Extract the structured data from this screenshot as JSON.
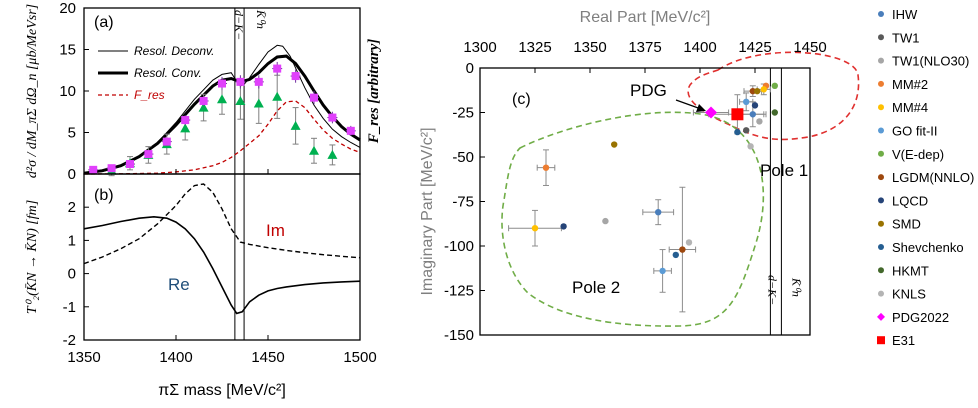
{
  "chart_data": [
    {
      "panel": "a",
      "type": "line",
      "label": "(a)",
      "xlim": [
        1350,
        1500
      ],
      "ylim": [
        0,
        20
      ],
      "xticks": [
        1350,
        1400,
        1450,
        1500
      ],
      "yticks": [
        0,
        5,
        10,
        15,
        20
      ],
      "ylabel": "d²σ / dM_πΣ dΩ_n [μb/MeVsr]",
      "ylabel_right": "F_res [arbitrary]",
      "threshold_labels": [
        "d−K−",
        "K̄⁰n"
      ],
      "thresholds": [
        1432,
        1437
      ],
      "legend": [
        "Resol. Deconv.",
        "Resol. Conv.",
        "F_res"
      ],
      "series": [
        {
          "name": "Resol. Deconv.",
          "x": [
            1350,
            1360,
            1370,
            1380,
            1390,
            1400,
            1410,
            1420,
            1425,
            1430,
            1432,
            1435,
            1437,
            1440,
            1445,
            1450,
            1455,
            1458,
            1462,
            1466,
            1470,
            1475,
            1480,
            1485,
            1490,
            1495,
            1500
          ],
          "y": [
            0.05,
            0.3,
            0.9,
            2.0,
            3.8,
            6.2,
            9.0,
            11.3,
            12.0,
            12.2,
            11.5,
            10.6,
            10.8,
            11.6,
            13.2,
            14.7,
            15.5,
            15.4,
            14.2,
            12.3,
            10.4,
            8.3,
            6.7,
            5.4,
            4.5,
            3.8,
            3.2
          ]
        },
        {
          "name": "Resol. Conv.",
          "x": [
            1350,
            1360,
            1370,
            1380,
            1390,
            1400,
            1410,
            1420,
            1425,
            1430,
            1435,
            1440,
            1445,
            1450,
            1455,
            1460,
            1465,
            1470,
            1475,
            1480,
            1485,
            1490,
            1495,
            1500
          ],
          "y": [
            0.1,
            0.4,
            1.0,
            2.1,
            3.7,
            5.9,
            8.4,
            10.6,
            11.3,
            11.5,
            11.1,
            11.4,
            12.2,
            13.3,
            14.1,
            14.2,
            13.3,
            11.8,
            10.0,
            8.3,
            6.9,
            5.7,
            4.8,
            4.1
          ]
        },
        {
          "name": "F_res",
          "x": [
            1350,
            1370,
            1390,
            1400,
            1410,
            1420,
            1425,
            1430,
            1435,
            1440,
            1445,
            1450,
            1455,
            1460,
            1465,
            1470,
            1475,
            1480,
            1485,
            1490,
            1495,
            1500
          ],
          "y": [
            0,
            0.02,
            0.1,
            0.25,
            0.5,
            1.0,
            1.4,
            2.0,
            2.8,
            3.7,
            4.6,
            6.0,
            7.6,
            8.7,
            8.8,
            8.0,
            6.6,
            5.3,
            4.3,
            3.6,
            3.0,
            2.6
          ]
        },
        {
          "name": "data (magenta squares)",
          "x": [
            1355,
            1365,
            1375,
            1385,
            1395,
            1405,
            1415,
            1425,
            1435,
            1445,
            1455,
            1465,
            1475,
            1485,
            1495
          ],
          "y": [
            0.5,
            0.7,
            1.2,
            2.4,
            3.9,
            6.5,
            8.8,
            10.9,
            11.1,
            11.1,
            12.7,
            11.8,
            9.2,
            6.8,
            5.2
          ],
          "err": [
            0.3,
            0.3,
            0.3,
            0.4,
            0.5,
            0.6,
            0.6,
            0.8,
            0.8,
            0.8,
            0.8,
            0.8,
            0.8,
            0.7,
            0.6
          ]
        },
        {
          "name": "data (green triangles)",
          "x": [
            1365,
            1375,
            1385,
            1395,
            1405,
            1415,
            1425,
            1435,
            1445,
            1455,
            1465,
            1475,
            1485
          ],
          "y": [
            0.4,
            1.3,
            2.3,
            3.6,
            5.5,
            8.0,
            9.0,
            8.8,
            8.5,
            9.3,
            5.8,
            2.8,
            2.3
          ],
          "err": [
            0.6,
            0.8,
            1.0,
            1.2,
            1.4,
            1.6,
            1.8,
            2.2,
            2.4,
            2.6,
            2.2,
            1.5,
            1.2
          ]
        }
      ]
    },
    {
      "panel": "b",
      "type": "line",
      "label": "(b)",
      "xlim": [
        1350,
        1500
      ],
      "ylim": [
        -2,
        3
      ],
      "xticks": [
        1350,
        1400,
        1450,
        1500
      ],
      "yticks": [
        -2,
        -1,
        0,
        1,
        2
      ],
      "xlabel": "πΣ mass [MeV/c²]",
      "ylabel": "T⁰₂(K̄N → K̄N) [fm]",
      "series": [
        {
          "name": "Re",
          "x": [
            1350,
            1360,
            1370,
            1380,
            1388,
            1395,
            1400,
            1405,
            1410,
            1415,
            1420,
            1425,
            1430,
            1433,
            1436,
            1438,
            1440,
            1445,
            1450,
            1455,
            1460,
            1470,
            1480,
            1490,
            1500
          ],
          "y": [
            1.35,
            1.45,
            1.57,
            1.67,
            1.71,
            1.67,
            1.55,
            1.35,
            1.05,
            0.65,
            0.15,
            -0.4,
            -0.95,
            -1.2,
            -1.15,
            -1.0,
            -0.85,
            -0.65,
            -0.52,
            -0.45,
            -0.4,
            -0.33,
            -0.28,
            -0.25,
            -0.23
          ]
        },
        {
          "name": "Im",
          "x": [
            1350,
            1360,
            1370,
            1380,
            1390,
            1400,
            1405,
            1410,
            1415,
            1420,
            1425,
            1430,
            1435,
            1440,
            1450,
            1460,
            1470,
            1480,
            1490,
            1500
          ],
          "y": [
            0.3,
            0.5,
            0.75,
            1.05,
            1.5,
            2.05,
            2.4,
            2.65,
            2.7,
            2.45,
            1.95,
            1.35,
            0.95,
            0.88,
            0.78,
            0.7,
            0.63,
            0.57,
            0.52,
            0.48
          ]
        }
      ],
      "annotations": [
        "Im",
        "Re"
      ]
    },
    {
      "panel": "c",
      "type": "scatter",
      "label": "(c)",
      "xlabel": "Real Part [MeV/c²]",
      "ylabel": "Imaginary Part [MeV/c²]",
      "xlim": [
        1300,
        1450
      ],
      "ylim": [
        -150,
        0
      ],
      "xticks": [
        1300,
        1325,
        1350,
        1375,
        1400,
        1425,
        1450
      ],
      "yticks": [
        0,
        -25,
        -50,
        -75,
        -100,
        -125,
        -150
      ],
      "thresholds": [
        1432,
        1437
      ],
      "threshold_labels": [
        "d−K−",
        "K̄⁰n"
      ],
      "annotations": [
        "PDG",
        "Pole 1",
        "Pole 2"
      ],
      "legend_position": "right",
      "series": [
        {
          "name": "IHW",
          "color": "#4a7ebb",
          "points": [
            [
              1424,
              -26
            ],
            [
              1381,
              -81
            ]
          ]
        },
        {
          "name": "TW1",
          "color": "#595959",
          "points": [
            [
              1421,
              -35
            ]
          ]
        },
        {
          "name": "TW1(NLO30)",
          "color": "#a6a6a6",
          "points": [
            [
              1427,
              -30
            ],
            [
              1357,
              -86
            ]
          ]
        },
        {
          "name": "MM#2",
          "color": "#ed7d31",
          "points": [
            [
              1430,
              -10
            ],
            [
              1330,
              -56
            ]
          ]
        },
        {
          "name": "MM#4",
          "color": "#ffc000",
          "points": [
            [
              1429,
              -12
            ],
            [
              1325,
              -90
            ]
          ]
        },
        {
          "name": "GO fit-II",
          "color": "#5b9bd5",
          "points": [
            [
              1421,
              -19
            ],
            [
              1383,
              -114
            ]
          ]
        },
        {
          "name": "V(E-dep)",
          "color": "#70ad47",
          "points": [
            [
              1434,
              -10
            ]
          ]
        },
        {
          "name": "LGDM(NNLO)",
          "color": "#9e480e",
          "points": [
            [
              1424,
              -13
            ],
            [
              1392,
              -102
            ]
          ]
        },
        {
          "name": "LQCD",
          "color": "#264478",
          "points": [
            [
              1425,
              -21
            ],
            [
              1338,
              -89
            ]
          ]
        },
        {
          "name": "SMD",
          "color": "#997300",
          "points": [
            [
              1426,
              -13
            ],
            [
              1361,
              -43
            ]
          ]
        },
        {
          "name": "Shevchenko",
          "color": "#255e91",
          "points": [
            [
              1417,
              -36
            ],
            [
              1389,
              -105
            ]
          ]
        },
        {
          "name": "HKMT",
          "color": "#43682b",
          "points": [
            [
              1434,
              -25
            ]
          ]
        },
        {
          "name": "KNLS",
          "color": "#b4b4b4",
          "points": [
            [
              1423,
              -44
            ],
            [
              1395,
              -98
            ]
          ]
        },
        {
          "name": "PDG2022",
          "color": "#ff00ff",
          "points": [
            [
              1405,
              -25
            ]
          ]
        },
        {
          "name": "E31",
          "color": "#ff0000",
          "points": [
            [
              1417,
              -26
            ]
          ]
        }
      ]
    }
  ]
}
